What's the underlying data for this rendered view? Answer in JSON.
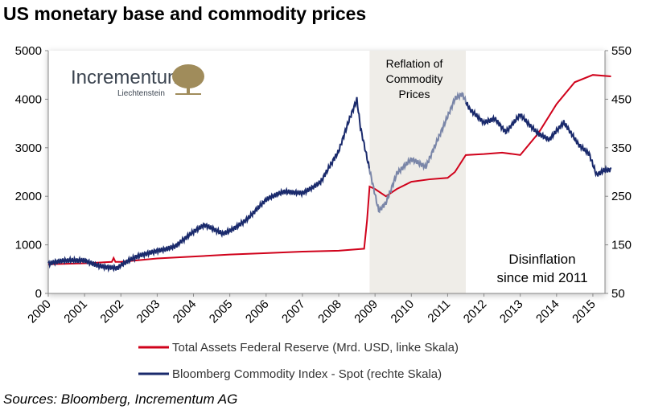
{
  "title": "US monetary base and commodity prices",
  "sources": "Sources: Bloomberg, Incrementum AG",
  "logo": {
    "name": "Incrementum",
    "sub": "Liechtenstein",
    "color": "#a08c5b"
  },
  "chart_data": {
    "type": "line",
    "title": "US monetary base and commodity prices",
    "x_ticks": [
      "2000",
      "2001",
      "2002",
      "2003",
      "2004",
      "2005",
      "2006",
      "2007",
      "2008",
      "2009",
      "2010",
      "2011",
      "2012",
      "2013",
      "2014",
      "2015"
    ],
    "xlim": [
      2000,
      2015.7
    ],
    "left_axis": {
      "ylim": [
        0,
        5000
      ],
      "ticks": [
        0,
        1000,
        2000,
        3000,
        4000,
        5000
      ]
    },
    "right_axis": {
      "ylim": [
        50,
        550
      ],
      "ticks": [
        50,
        150,
        250,
        350,
        450,
        550
      ]
    },
    "grid": false,
    "shaded_region": {
      "x": [
        2008.85,
        2011.5
      ],
      "label": "Reflation of Commodity Prices",
      "color": "#efede8"
    },
    "annotation": "Disinflation since mid 2011",
    "legend_position": "bottom",
    "series": [
      {
        "name": "Total Assets Federal Reserve (Mrd. USD, linke Skala)",
        "axis": "left",
        "color": "#d0021b",
        "x": [
          2000,
          2001,
          2001.75,
          2001.8,
          2001.85,
          2002,
          2003,
          2004,
          2005,
          2006,
          2007,
          2008,
          2008.7,
          2008.78,
          2008.85,
          2009,
          2009.3,
          2009.6,
          2010,
          2010.5,
          2011,
          2011.2,
          2011.5,
          2012,
          2012.5,
          2013,
          2013.5,
          2014,
          2014.5,
          2015,
          2015.5
        ],
        "y": [
          600,
          620,
          650,
          730,
          650,
          650,
          720,
          760,
          800,
          830,
          860,
          880,
          920,
          1500,
          2200,
          2150,
          2000,
          2150,
          2300,
          2350,
          2380,
          2500,
          2850,
          2870,
          2900,
          2850,
          3300,
          3900,
          4350,
          4500,
          4470
        ]
      },
      {
        "name": "Bloomberg Commodity Index - Spot (rechte Skala)",
        "axis": "right",
        "color": "#1a2a6c",
        "highlight_color": "#7a86a8",
        "x": [
          2000,
          2000.5,
          2001,
          2001.5,
          2001.9,
          2002,
          2002.5,
          2003,
          2003.5,
          2004,
          2004.3,
          2004.8,
          2005,
          2005.5,
          2006,
          2006.5,
          2007,
          2007.5,
          2008,
          2008.3,
          2008.5,
          2008.6,
          2008.9,
          2009.1,
          2009.3,
          2009.6,
          2010,
          2010.4,
          2010.8,
          2011.2,
          2011.4,
          2011.6,
          2012,
          2012.3,
          2012.6,
          2013,
          2013.5,
          2013.8,
          2014.2,
          2014.6,
          2014.9,
          2015.1,
          2015.3,
          2015.5
        ],
        "y": [
          108,
          115,
          121,
          108,
          100,
          105,
          125,
          141,
          150,
          174,
          187,
          174,
          182,
          207,
          240,
          257,
          260,
          282,
          340,
          406,
          447,
          390,
          290,
          224,
          240,
          298,
          323,
          307,
          381,
          455,
          464,
          431,
          398,
          406,
          381,
          422,
          381,
          365,
          398,
          356,
          340,
          298,
          307,
          307
        ]
      }
    ]
  }
}
